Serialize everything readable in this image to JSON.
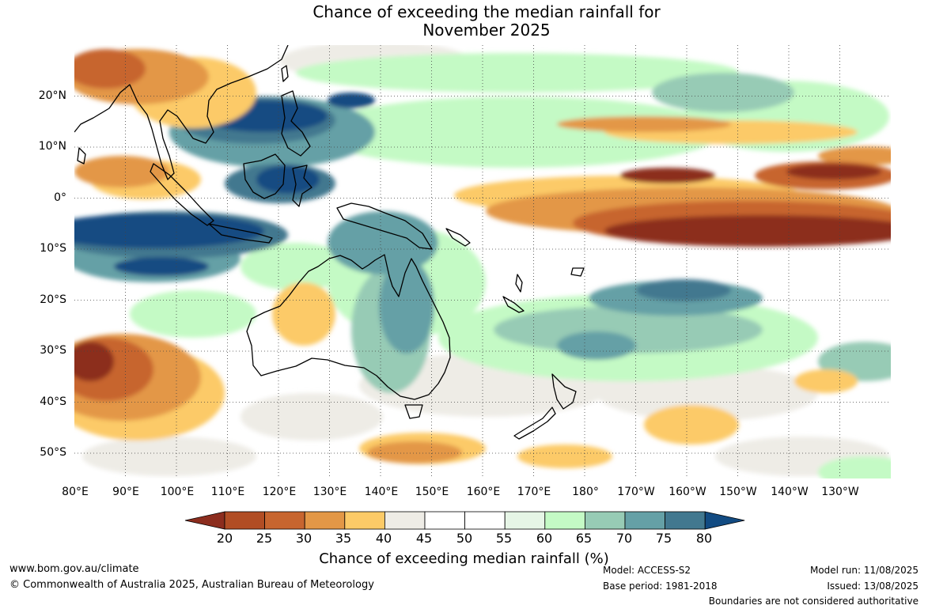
{
  "title_line1": "Chance of exceeding the median rainfall for",
  "title_line2": "November 2025",
  "lat_labels": [
    "20°N",
    "10°N",
    "0°",
    "10°S",
    "20°S",
    "30°S",
    "40°S",
    "50°S"
  ],
  "lon_labels": [
    "80°E",
    "90°E",
    "100°E",
    "110°E",
    "120°E",
    "130°E",
    "140°E",
    "150°E",
    "160°E",
    "170°E",
    "180°",
    "170°W",
    "160°W",
    "150°W",
    "140°W",
    "130°W"
  ],
  "colorbar": {
    "ticks": [
      "20",
      "25",
      "30",
      "35",
      "40",
      "45",
      "50",
      "55",
      "60",
      "65",
      "70",
      "75",
      "80"
    ],
    "title": "Chance of exceeding median rainfall (%)",
    "colors": [
      "#8c2d1e",
      "#b14d24",
      "#c7652f",
      "#e39746",
      "#fcca67",
      "#eeece6",
      "#ffffff",
      "#ffffff",
      "#e6f5e6",
      "#c4fac5",
      "#97cbb5",
      "#65a0a6",
      "#42788f",
      "#124b82"
    ]
  },
  "footer": {
    "website": "www.bom.gov.au/climate",
    "copyright": "© Commonwealth of Australia 2025, Australian Bureau of Meteorology",
    "model": "Model: ACCESS-S2",
    "base_period": "Base period: 1981-2018",
    "model_run": "Model run: 11/08/2025",
    "issued": "Issued: 13/08/2025",
    "disclaimer": "Boundaries are not considered authoritative"
  }
}
